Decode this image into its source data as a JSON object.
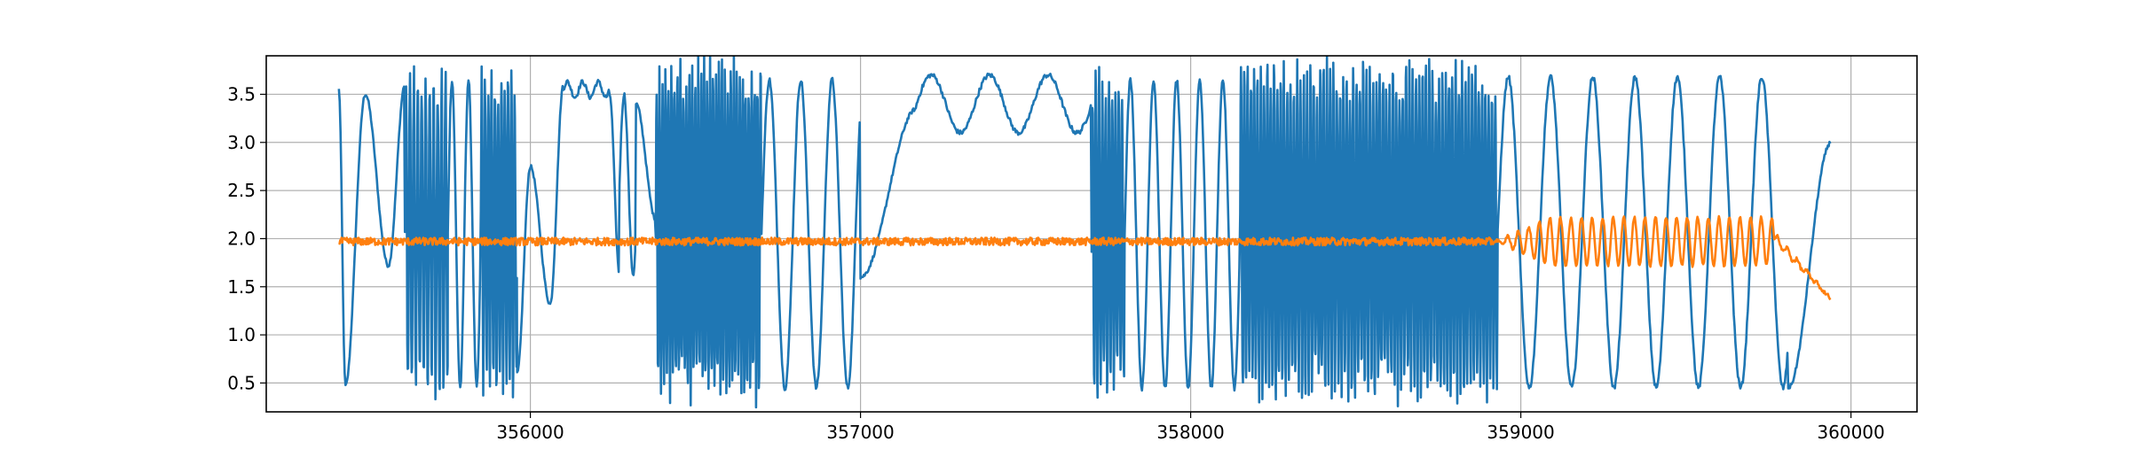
{
  "chart_data": {
    "type": "line",
    "title": "",
    "xlabel": "",
    "ylabel": "",
    "xlim": [
      355200,
      360200
    ],
    "ylim": [
      0.2,
      3.9
    ],
    "grid": true,
    "x_ticks": [
      356000,
      357000,
      358000,
      359000,
      360000
    ],
    "x_tick_labels": [
      "356000",
      "357000",
      "358000",
      "359000",
      "360000"
    ],
    "y_ticks": [
      0.5,
      1.0,
      1.5,
      2.0,
      2.5,
      3.0,
      3.5
    ],
    "y_tick_labels": [
      "0.5",
      "1.0",
      "1.5",
      "2.0",
      "2.5",
      "3.0",
      "3.5"
    ],
    "x_start": 355420,
    "x_end": 359940,
    "series": [
      {
        "color": "#1f77b4",
        "description_segments": [
          {
            "x": [
              355420,
              355440
            ],
            "pattern": "drop",
            "from": 3.55,
            "to": 0.47
          },
          {
            "x": [
              355440,
              355500
            ],
            "pattern": "rise",
            "from": 0.47,
            "to": 3.5
          },
          {
            "x": [
              355500,
              355570
            ],
            "pattern": "fall",
            "from": 3.5,
            "to": 1.72
          },
          {
            "x": [
              355570,
              355620
            ],
            "pattern": "rise",
            "from": 1.72,
            "to": 3.6
          },
          {
            "x": [
              355620,
              355750
            ],
            "pattern": "dense",
            "low": 0.5,
            "high": 3.65,
            "period": 12
          },
          {
            "x": [
              355750,
              355850
            ],
            "pattern": "slow",
            "low": 0.45,
            "high": 3.65,
            "period": 50
          },
          {
            "x": [
              355850,
              355960
            ],
            "pattern": "dense",
            "low": 0.55,
            "high": 3.65,
            "period": 10
          },
          {
            "x": [
              355960,
              356000
            ],
            "pattern": "rise",
            "from": 0.6,
            "to": 2.75
          },
          {
            "x": [
              356000,
              356060
            ],
            "pattern": "fall",
            "from": 2.75,
            "to": 1.32
          },
          {
            "x": [
              356060,
              356100
            ],
            "pattern": "rise",
            "from": 1.32,
            "to": 3.6
          },
          {
            "x": [
              356100,
              356240
            ],
            "pattern": "plateau",
            "level": 3.55,
            "amp": 0.08
          },
          {
            "x": [
              356240,
              356270
            ],
            "pattern": "fall",
            "from": 3.5,
            "to": 1.63
          },
          {
            "x": [
              356270,
              356320
            ],
            "pattern": "slow",
            "low": 1.63,
            "high": 3.5,
            "period": 55
          },
          {
            "x": [
              356320,
              356380
            ],
            "pattern": "fall",
            "from": 3.4,
            "to": 2.2
          },
          {
            "x": [
              356380,
              356700
            ],
            "pattern": "dense",
            "low": 0.45,
            "high": 3.7,
            "period": 9
          },
          {
            "x": [
              356700,
              357000
            ],
            "pattern": "slow",
            "low": 0.45,
            "high": 3.65,
            "period": 95
          },
          {
            "x": [
              357000,
              357170
            ],
            "pattern": "rise",
            "from": 1.6,
            "to": 3.35
          },
          {
            "x": [
              357170,
              357700
            ],
            "pattern": "plateau",
            "level": 3.4,
            "amp": 0.3
          },
          {
            "x": [
              357700,
              357800
            ],
            "pattern": "dense",
            "low": 0.5,
            "high": 3.6,
            "period": 10
          },
          {
            "x": [
              357800,
              358150
            ],
            "pattern": "slow",
            "low": 0.45,
            "high": 3.65,
            "period": 70
          },
          {
            "x": [
              358150,
              358930
            ],
            "pattern": "dense",
            "low": 0.5,
            "high": 3.68,
            "period": 10
          },
          {
            "x": [
              358930,
              359810
            ],
            "pattern": "slow",
            "low": 0.45,
            "high": 3.68,
            "period": 128
          },
          {
            "x": [
              359810,
              359940
            ],
            "pattern": "rise",
            "from": 0.45,
            "to": 3.0
          }
        ]
      },
      {
        "color": "#ff7f0e",
        "description_segments": [
          {
            "x": [
              355420,
              358920
            ],
            "pattern": "noise",
            "level": 1.97,
            "amp": 0.04
          },
          {
            "x": [
              358920,
              359770
            ],
            "pattern": "oscillation",
            "level": 1.97,
            "amp": 0.25,
            "period": 32
          },
          {
            "x": [
              359770,
              359940
            ],
            "pattern": "decay",
            "from": 2.0,
            "to": 1.37
          }
        ]
      }
    ]
  }
}
